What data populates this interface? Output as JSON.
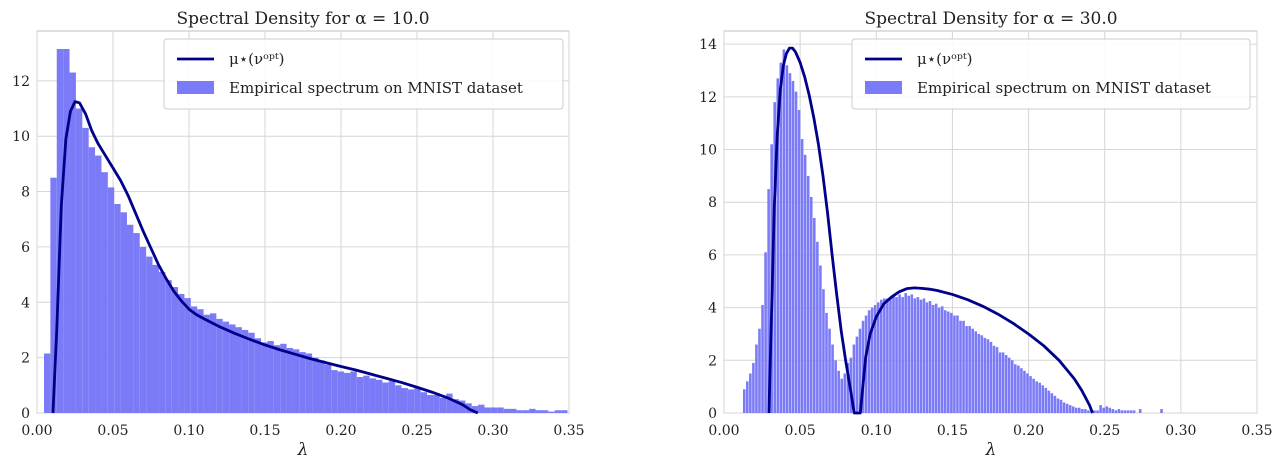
{
  "chart_data": [
    {
      "type": "bar",
      "title": "Spectral Density for α = 10.0",
      "xlabel": "λ",
      "ylabel": "",
      "xlim": [
        0.0,
        0.35
      ],
      "ylim": [
        0,
        13.8
      ],
      "xticks": [
        "0.00",
        "0.05",
        "0.10",
        "0.15",
        "0.20",
        "0.25",
        "0.30",
        "0.35"
      ],
      "yticks": [
        "0",
        "2",
        "4",
        "6",
        "8",
        "10",
        "12"
      ],
      "grid": true,
      "legend_position": "top-right",
      "legend": [
        "μ⋆(νᵒᵖᵗ)",
        "Empirical spectrum on MNIST dataset"
      ],
      "colors": {
        "histogram": "#7b7bf7",
        "curve": "#00008b"
      },
      "bar_width": 0.0042,
      "histogram": {
        "x": [
          0.0067,
          0.0109,
          0.0151,
          0.0193,
          0.0235,
          0.0277,
          0.0319,
          0.0361,
          0.0403,
          0.0445,
          0.0487,
          0.0529,
          0.0571,
          0.0613,
          0.0655,
          0.0697,
          0.0739,
          0.0781,
          0.0823,
          0.0865,
          0.0907,
          0.0949,
          0.0991,
          0.1033,
          0.1075,
          0.1117,
          0.1159,
          0.1201,
          0.1243,
          0.1285,
          0.1327,
          0.1369,
          0.1411,
          0.1453,
          0.1495,
          0.1537,
          0.1579,
          0.1621,
          0.1663,
          0.1705,
          0.1747,
          0.1789,
          0.1831,
          0.1873,
          0.1915,
          0.1957,
          0.1999,
          0.2041,
          0.2083,
          0.2125,
          0.2167,
          0.2209,
          0.2251,
          0.2293,
          0.2335,
          0.2377,
          0.2419,
          0.2461,
          0.2503,
          0.2545,
          0.2587,
          0.2629,
          0.2671,
          0.2713,
          0.2755,
          0.2797,
          0.2839,
          0.2881,
          0.2923,
          0.2965,
          0.3007,
          0.3049,
          0.3091,
          0.3133,
          0.3175,
          0.3217,
          0.3259,
          0.3301,
          0.3343,
          0.3385,
          0.3427,
          0.3469
        ],
        "y": [
          2.15,
          8.5,
          13.15,
          13.15,
          12.3,
          11.0,
          10.3,
          9.6,
          9.3,
          8.7,
          8.15,
          7.55,
          7.25,
          6.8,
          6.5,
          6.0,
          5.65,
          5.35,
          5.1,
          4.8,
          4.55,
          4.3,
          4.15,
          3.85,
          3.75,
          3.55,
          3.6,
          3.4,
          3.3,
          3.2,
          3.1,
          3.0,
          2.9,
          2.7,
          2.55,
          2.6,
          2.45,
          2.5,
          2.35,
          2.3,
          2.2,
          2.15,
          2.0,
          1.9,
          1.75,
          1.55,
          1.5,
          1.45,
          1.5,
          1.3,
          1.35,
          1.25,
          1.2,
          1.1,
          1.15,
          1.0,
          0.9,
          0.85,
          0.9,
          0.75,
          0.65,
          0.65,
          0.55,
          0.7,
          0.5,
          0.45,
          0.35,
          0.25,
          0.3,
          0.2,
          0.2,
          0.2,
          0.15,
          0.15,
          0.1,
          0.1,
          0.15,
          0.1,
          0.1,
          0.05,
          0.1,
          0.1
        ]
      },
      "curve": {
        "x": [
          0.0105,
          0.013,
          0.016,
          0.019,
          0.022,
          0.025,
          0.028,
          0.032,
          0.036,
          0.04,
          0.045,
          0.05,
          0.055,
          0.06,
          0.065,
          0.07,
          0.075,
          0.08,
          0.085,
          0.09,
          0.095,
          0.1,
          0.105,
          0.11,
          0.12,
          0.13,
          0.14,
          0.15,
          0.16,
          0.17,
          0.18,
          0.19,
          0.2,
          0.21,
          0.22,
          0.23,
          0.24,
          0.25,
          0.26,
          0.27,
          0.28,
          0.285,
          0.29
        ],
        "y": [
          0.0,
          3.0,
          7.5,
          9.9,
          10.9,
          11.25,
          11.2,
          10.8,
          10.2,
          9.75,
          9.3,
          8.85,
          8.4,
          7.85,
          7.2,
          6.55,
          5.95,
          5.35,
          4.85,
          4.4,
          4.05,
          3.75,
          3.55,
          3.4,
          3.12,
          2.88,
          2.66,
          2.46,
          2.28,
          2.12,
          1.96,
          1.82,
          1.68,
          1.55,
          1.4,
          1.25,
          1.1,
          0.93,
          0.75,
          0.55,
          0.3,
          0.12,
          0.0
        ]
      }
    },
    {
      "type": "bar",
      "title": "Spectral Density for α = 30.0",
      "xlabel": "λ",
      "ylabel": "",
      "xlim": [
        0.0,
        0.35
      ],
      "ylim": [
        0,
        14.5
      ],
      "xticks": [
        "0.00",
        "0.05",
        "0.10",
        "0.15",
        "0.20",
        "0.25",
        "0.30",
        "0.35"
      ],
      "yticks": [
        "0",
        "2",
        "4",
        "6",
        "8",
        "10",
        "12",
        "14"
      ],
      "grid": true,
      "legend_position": "top-right",
      "legend": [
        "μ⋆(νᵒᵖᵗ)",
        "Empirical spectrum on MNIST dataset"
      ],
      "colors": {
        "histogram": "#7b7bf7",
        "curve": "#00008b"
      },
      "bar_width": 0.0017,
      "histogram": {
        "x": [
          0.0133,
          0.0153,
          0.0173,
          0.0193,
          0.0213,
          0.0233,
          0.0253,
          0.0273,
          0.0293,
          0.0313,
          0.0333,
          0.0353,
          0.0373,
          0.0393,
          0.0413,
          0.0433,
          0.0453,
          0.0473,
          0.0493,
          0.0513,
          0.0533,
          0.0553,
          0.0573,
          0.0593,
          0.0613,
          0.0633,
          0.0653,
          0.0673,
          0.0693,
          0.0713,
          0.0733,
          0.0753,
          0.0773,
          0.0793,
          0.0813,
          0.0833,
          0.0853,
          0.0873,
          0.0893,
          0.0913,
          0.0933,
          0.0953,
          0.0973,
          0.0993,
          0.1013,
          0.1033,
          0.1053,
          0.1073,
          0.1093,
          0.1113,
          0.1133,
          0.1153,
          0.1173,
          0.1193,
          0.1213,
          0.1233,
          0.1253,
          0.1273,
          0.1293,
          0.1313,
          0.1333,
          0.1353,
          0.1373,
          0.1393,
          0.1413,
          0.1433,
          0.1453,
          0.1473,
          0.1493,
          0.1513,
          0.1533,
          0.1553,
          0.1573,
          0.1593,
          0.1613,
          0.1633,
          0.1653,
          0.1673,
          0.1693,
          0.1713,
          0.1733,
          0.1753,
          0.1773,
          0.1793,
          0.1813,
          0.1833,
          0.1853,
          0.1873,
          0.1893,
          0.1913,
          0.1933,
          0.1953,
          0.1973,
          0.1993,
          0.2013,
          0.2033,
          0.2053,
          0.2073,
          0.2093,
          0.2113,
          0.2133,
          0.2153,
          0.2173,
          0.2193,
          0.2213,
          0.2233,
          0.2253,
          0.2273,
          0.2293,
          0.2313,
          0.2333,
          0.2353,
          0.2373,
          0.2393,
          0.2413,
          0.2433,
          0.2453,
          0.2473,
          0.2493,
          0.2513,
          0.2533,
          0.2553,
          0.2573,
          0.2593,
          0.2613,
          0.2633,
          0.2653,
          0.2673,
          0.2693,
          0.2733,
          0.2873
        ],
        "y": [
          0.9,
          1.2,
          1.5,
          1.9,
          2.6,
          3.2,
          4.1,
          6.1,
          8.5,
          10.2,
          11.8,
          12.7,
          13.3,
          13.8,
          13.2,
          12.9,
          12.6,
          12.2,
          11.5,
          10.4,
          9.8,
          9.0,
          8.2,
          7.4,
          6.5,
          5.6,
          4.7,
          3.8,
          3.2,
          2.6,
          2.0,
          1.6,
          1.3,
          1.5,
          1.9,
          2.1,
          2.6,
          2.9,
          3.2,
          3.5,
          3.7,
          3.9,
          4.0,
          4.1,
          4.2,
          4.3,
          4.35,
          4.35,
          4.4,
          4.45,
          4.4,
          4.5,
          4.4,
          4.55,
          4.45,
          4.5,
          4.35,
          4.4,
          4.3,
          4.35,
          4.2,
          4.25,
          4.1,
          4.15,
          4.0,
          4.05,
          3.9,
          3.85,
          3.8,
          3.7,
          3.7,
          3.5,
          3.5,
          3.3,
          3.3,
          3.2,
          3.1,
          3.0,
          2.95,
          2.85,
          2.8,
          2.7,
          2.55,
          2.5,
          2.3,
          2.3,
          2.2,
          2.1,
          2.0,
          1.85,
          1.8,
          1.7,
          1.6,
          1.5,
          1.4,
          1.3,
          1.2,
          1.15,
          1.05,
          0.95,
          0.85,
          0.75,
          0.65,
          0.55,
          0.5,
          0.4,
          0.35,
          0.3,
          0.25,
          0.2,
          0.2,
          0.15,
          0.15,
          0.1,
          0.1,
          0.1,
          0.1,
          0.3,
          0.2,
          0.25,
          0.2,
          0.15,
          0.1,
          0.15,
          0.1,
          0.1,
          0.1,
          0.1,
          0.1,
          0.15,
          0.15
        ]
      },
      "curve": {
        "x": [
          0.0295,
          0.031,
          0.033,
          0.035,
          0.037,
          0.039,
          0.041,
          0.043,
          0.045,
          0.047,
          0.05,
          0.053,
          0.056,
          0.059,
          0.062,
          0.065,
          0.068,
          0.071,
          0.074,
          0.077,
          0.08,
          0.083,
          0.0855,
          0.087,
          0.0895,
          0.091,
          0.093,
          0.096,
          0.1,
          0.105,
          0.11,
          0.115,
          0.12,
          0.125,
          0.13,
          0.135,
          0.14,
          0.15,
          0.16,
          0.17,
          0.18,
          0.19,
          0.2,
          0.21,
          0.22,
          0.225,
          0.23,
          0.235,
          0.24,
          0.242
        ],
        "y": [
          0.0,
          3.3,
          7.8,
          10.6,
          12.3,
          13.2,
          13.65,
          13.85,
          13.85,
          13.7,
          13.3,
          12.75,
          12.05,
          11.2,
          10.2,
          9.0,
          7.6,
          6.0,
          4.5,
          3.1,
          1.95,
          0.9,
          0.0,
          0.0,
          0.0,
          0.9,
          2.1,
          3.0,
          3.65,
          4.15,
          4.4,
          4.6,
          4.72,
          4.75,
          4.73,
          4.7,
          4.65,
          4.5,
          4.3,
          4.05,
          3.75,
          3.4,
          3.0,
          2.55,
          2.0,
          1.65,
          1.3,
          0.85,
          0.3,
          0.0
        ]
      }
    }
  ]
}
